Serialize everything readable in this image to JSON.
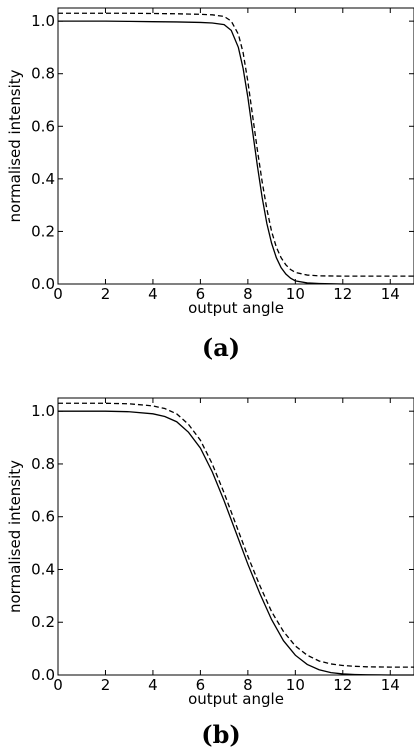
{
  "chart_data": [
    {
      "type": "line",
      "panel_label": "(a)",
      "xlabel": "output angle",
      "ylabel": "normalised intensity",
      "xlim": [
        0,
        15
      ],
      "ylim": [
        0,
        1.05
      ],
      "x_ticks": [
        0,
        2,
        4,
        6,
        8,
        10,
        12,
        14
      ],
      "y_ticks": [
        0.0,
        0.2,
        0.4,
        0.6,
        0.8,
        1.0
      ],
      "x_tick_labels": [
        "0",
        "2",
        "4",
        "6",
        "8",
        "10",
        "12",
        "14"
      ],
      "y_tick_labels": [
        "0.0",
        "0.2",
        "0.4",
        "0.6",
        "0.8",
        "1.0"
      ],
      "grid": false,
      "series": [
        {
          "style": "solid",
          "x": [
            0,
            1,
            2,
            3,
            4,
            5,
            6,
            6.5,
            7,
            7.3,
            7.6,
            7.8,
            8.0,
            8.2,
            8.4,
            8.6,
            8.8,
            9.0,
            9.2,
            9.4,
            9.6,
            9.8,
            10.0,
            10.5,
            11,
            12,
            13,
            14,
            15
          ],
          "y": [
            1.0,
            1.0,
            1.0,
            0.999,
            0.998,
            0.997,
            0.995,
            0.993,
            0.987,
            0.965,
            0.9,
            0.82,
            0.71,
            0.58,
            0.45,
            0.33,
            0.23,
            0.155,
            0.1,
            0.062,
            0.038,
            0.022,
            0.012,
            0.004,
            0.002,
            0.0,
            0.0,
            0.0,
            0.0
          ]
        },
        {
          "style": "dashed",
          "x": [
            0,
            1,
            2,
            3,
            4,
            5,
            6,
            6.5,
            7,
            7.3,
            7.6,
            7.8,
            8.0,
            8.2,
            8.4,
            8.6,
            8.8,
            9.0,
            9.2,
            9.4,
            9.6,
            9.8,
            10.0,
            10.5,
            11,
            12,
            13,
            14,
            15
          ],
          "y": [
            1.03,
            1.03,
            1.03,
            1.03,
            1.029,
            1.028,
            1.026,
            1.024,
            1.018,
            1.0,
            0.95,
            0.88,
            0.77,
            0.64,
            0.51,
            0.39,
            0.285,
            0.2,
            0.14,
            0.1,
            0.073,
            0.055,
            0.044,
            0.034,
            0.031,
            0.03,
            0.03,
            0.03,
            0.03
          ]
        }
      ]
    },
    {
      "type": "line",
      "panel_label": "(b)",
      "xlabel": "output angle",
      "ylabel": "normalised intensity",
      "xlim": [
        0,
        15
      ],
      "ylim": [
        0,
        1.05
      ],
      "x_ticks": [
        0,
        2,
        4,
        6,
        8,
        10,
        12,
        14
      ],
      "y_ticks": [
        0.0,
        0.2,
        0.4,
        0.6,
        0.8,
        1.0
      ],
      "x_tick_labels": [
        "0",
        "2",
        "4",
        "6",
        "8",
        "10",
        "12",
        "14"
      ],
      "y_tick_labels": [
        "0.0",
        "0.2",
        "0.4",
        "0.6",
        "0.8",
        "1.0"
      ],
      "grid": false,
      "series": [
        {
          "style": "solid",
          "x": [
            0,
            1,
            2,
            3,
            4,
            4.5,
            5,
            5.5,
            6,
            6.5,
            7,
            7.5,
            8,
            8.5,
            9,
            9.5,
            10,
            10.5,
            11,
            11.5,
            12,
            12.5,
            13,
            14,
            15
          ],
          "y": [
            1.0,
            1.0,
            1.0,
            0.998,
            0.99,
            0.98,
            0.96,
            0.92,
            0.86,
            0.77,
            0.66,
            0.54,
            0.42,
            0.31,
            0.21,
            0.13,
            0.075,
            0.04,
            0.02,
            0.009,
            0.004,
            0.002,
            0.001,
            0.0,
            0.0
          ]
        },
        {
          "style": "dashed",
          "x": [
            0,
            1,
            2,
            3,
            4,
            4.5,
            5,
            5.5,
            6,
            6.5,
            7,
            7.5,
            8,
            8.5,
            9,
            9.5,
            10,
            10.5,
            11,
            11.5,
            12,
            12.5,
            13,
            14,
            15
          ],
          "y": [
            1.03,
            1.03,
            1.03,
            1.028,
            1.02,
            1.01,
            0.99,
            0.95,
            0.89,
            0.8,
            0.69,
            0.57,
            0.45,
            0.34,
            0.24,
            0.165,
            0.11,
            0.075,
            0.053,
            0.042,
            0.036,
            0.033,
            0.031,
            0.03,
            0.03
          ]
        }
      ]
    }
  ]
}
